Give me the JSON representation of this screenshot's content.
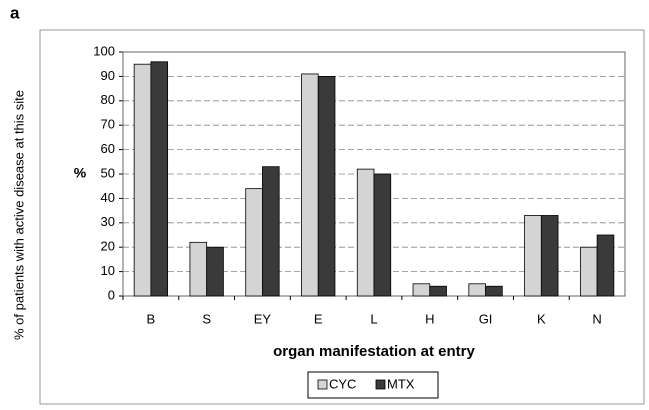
{
  "chart_data": {
    "type": "bar",
    "panel_label": "a",
    "ylabel": "% of patients with active disease at this site",
    "ylabel_short": "%",
    "xlabel": "organ manifestation at entry",
    "categories": [
      "B",
      "S",
      "EY",
      "E",
      "L",
      "H",
      "GI",
      "K",
      "N"
    ],
    "series": [
      {
        "name": "CYC",
        "color": "#d4d4d4",
        "values": [
          95,
          22,
          44,
          91,
          52,
          5,
          5,
          33,
          20
        ]
      },
      {
        "name": "MTX",
        "color": "#3a3a3a",
        "values": [
          96,
          20,
          53,
          90,
          50,
          4,
          4,
          33,
          25
        ]
      }
    ],
    "ylim": [
      0,
      100
    ],
    "yticks": [
      0,
      10,
      20,
      30,
      40,
      50,
      60,
      70,
      80,
      90,
      100
    ],
    "grid": true
  }
}
